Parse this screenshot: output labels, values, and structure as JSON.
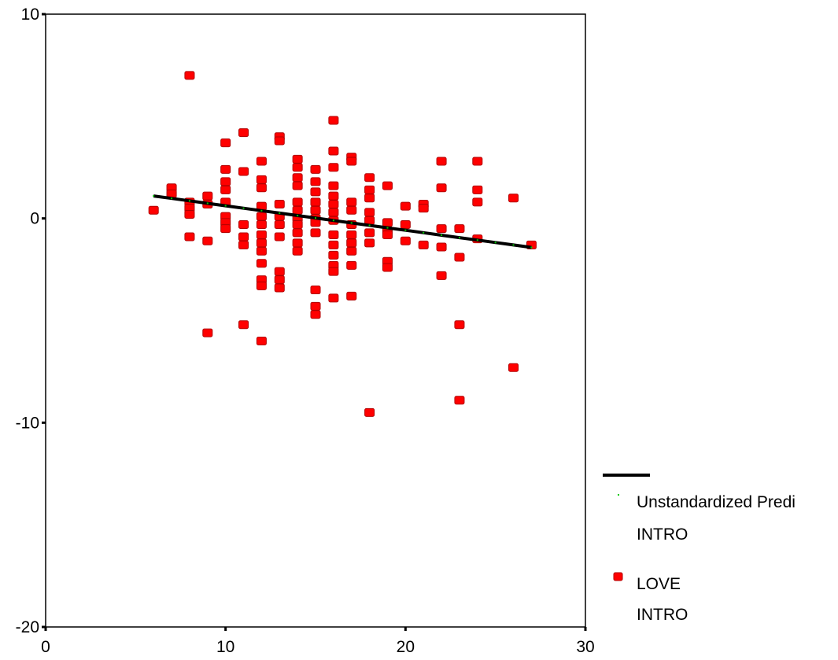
{
  "chart_data": {
    "type": "scatter",
    "title": "",
    "xlabel": "",
    "ylabel": "",
    "xlim": [
      0,
      30
    ],
    "ylim": [
      -20,
      10
    ],
    "x_ticks": [
      0,
      10,
      20,
      30
    ],
    "y_ticks": [
      10,
      0,
      -10,
      -20
    ],
    "grid": false,
    "legend_position": "right",
    "legend": [
      {
        "line1": "Unstandardized Predi",
        "line2": "INTRO",
        "marker": "line"
      },
      {
        "line1": "LOVE",
        "line2": "INTRO",
        "marker": "square"
      }
    ],
    "colors": {
      "observed": "#ff0000",
      "observed_edge": "#b00000",
      "fit_line": "#000000",
      "fit_dots": "#00c800"
    },
    "series": [
      {
        "name": "Unstandardized Predi INTRO",
        "type": "line",
        "x": [
          6,
          7,
          8,
          9,
          10,
          11,
          12,
          13,
          14,
          15,
          16,
          17,
          18,
          19,
          20,
          21,
          22,
          23,
          24,
          25,
          26,
          27
        ],
        "values": [
          1.1,
          0.98,
          0.86,
          0.74,
          0.62,
          0.5,
          0.38,
          0.26,
          0.14,
          0.02,
          -0.1,
          -0.22,
          -0.34,
          -0.46,
          -0.58,
          -0.7,
          -0.82,
          -0.94,
          -1.06,
          -1.18,
          -1.3,
          -1.42
        ]
      },
      {
        "name": "LOVE INTRO",
        "type": "scatter",
        "points": [
          [
            6,
            0.4
          ],
          [
            7,
            1.5
          ],
          [
            7,
            1.2
          ],
          [
            8,
            7.0
          ],
          [
            8,
            0.8
          ],
          [
            8,
            0.5
          ],
          [
            8,
            0.2
          ],
          [
            8,
            -0.9
          ],
          [
            9,
            1.1
          ],
          [
            9,
            0.7
          ],
          [
            9,
            -1.1
          ],
          [
            9,
            -5.6
          ],
          [
            10,
            3.7
          ],
          [
            10,
            2.4
          ],
          [
            10,
            1.8
          ],
          [
            10,
            1.4
          ],
          [
            10,
            0.8
          ],
          [
            10,
            0.1
          ],
          [
            10,
            -0.2
          ],
          [
            10,
            -0.5
          ],
          [
            11,
            4.2
          ],
          [
            11,
            2.3
          ],
          [
            11,
            -0.3
          ],
          [
            11,
            -0.9
          ],
          [
            11,
            -1.3
          ],
          [
            11,
            -5.2
          ],
          [
            12,
            2.8
          ],
          [
            12,
            1.9
          ],
          [
            12,
            1.5
          ],
          [
            12,
            0.6
          ],
          [
            12,
            0.1
          ],
          [
            12,
            -0.3
          ],
          [
            12,
            -0.8
          ],
          [
            12,
            -1.2
          ],
          [
            12,
            -1.6
          ],
          [
            12,
            -2.2
          ],
          [
            12,
            -3.0
          ],
          [
            12,
            -3.3
          ],
          [
            12,
            -6.0
          ],
          [
            13,
            4.0
          ],
          [
            13,
            3.8
          ],
          [
            13,
            0.7
          ],
          [
            13,
            0.1
          ],
          [
            13,
            -0.3
          ],
          [
            13,
            -0.9
          ],
          [
            13,
            -2.6
          ],
          [
            13,
            -3.0
          ],
          [
            13,
            -3.4
          ],
          [
            14,
            2.9
          ],
          [
            14,
            2.5
          ],
          [
            14,
            2.0
          ],
          [
            14,
            1.6
          ],
          [
            14,
            0.8
          ],
          [
            14,
            0.4
          ],
          [
            14,
            0.0
          ],
          [
            14,
            -0.3
          ],
          [
            14,
            -0.7
          ],
          [
            14,
            -1.2
          ],
          [
            14,
            -1.6
          ],
          [
            15,
            2.4
          ],
          [
            15,
            1.8
          ],
          [
            15,
            1.3
          ],
          [
            15,
            0.8
          ],
          [
            15,
            0.4
          ],
          [
            15,
            0.0
          ],
          [
            15,
            -0.2
          ],
          [
            15,
            -0.7
          ],
          [
            15,
            -3.5
          ],
          [
            15,
            -4.3
          ],
          [
            15,
            -4.7
          ],
          [
            16,
            4.8
          ],
          [
            16,
            3.3
          ],
          [
            16,
            2.5
          ],
          [
            16,
            1.6
          ],
          [
            16,
            1.1
          ],
          [
            16,
            0.7
          ],
          [
            16,
            0.3
          ],
          [
            16,
            -0.1
          ],
          [
            16,
            -0.8
          ],
          [
            16,
            -1.3
          ],
          [
            16,
            -1.8
          ],
          [
            16,
            -2.3
          ],
          [
            16,
            -2.6
          ],
          [
            16,
            -3.9
          ],
          [
            17,
            3.0
          ],
          [
            17,
            2.8
          ],
          [
            17,
            0.8
          ],
          [
            17,
            0.4
          ],
          [
            17,
            -0.3
          ],
          [
            17,
            -0.8
          ],
          [
            17,
            -1.2
          ],
          [
            17,
            -1.6
          ],
          [
            17,
            -2.3
          ],
          [
            17,
            -3.8
          ],
          [
            18,
            2.0
          ],
          [
            18,
            1.4
          ],
          [
            18,
            1.0
          ],
          [
            18,
            0.3
          ],
          [
            18,
            -0.1
          ],
          [
            18,
            -0.7
          ],
          [
            18,
            -1.2
          ],
          [
            18,
            -9.5
          ],
          [
            19,
            1.6
          ],
          [
            19,
            -0.2
          ],
          [
            19,
            -0.6
          ],
          [
            19,
            -0.8
          ],
          [
            19,
            -2.1
          ],
          [
            19,
            -2.4
          ],
          [
            20,
            0.6
          ],
          [
            20,
            -0.3
          ],
          [
            20,
            -1.1
          ],
          [
            21,
            0.7
          ],
          [
            21,
            0.5
          ],
          [
            21,
            -1.3
          ],
          [
            22,
            2.8
          ],
          [
            22,
            1.5
          ],
          [
            22,
            -0.5
          ],
          [
            22,
            -1.4
          ],
          [
            22,
            -2.8
          ],
          [
            23,
            -0.5
          ],
          [
            23,
            -1.9
          ],
          [
            23,
            -5.2
          ],
          [
            23,
            -8.9
          ],
          [
            24,
            2.8
          ],
          [
            24,
            1.4
          ],
          [
            24,
            0.8
          ],
          [
            24,
            -1.0
          ],
          [
            26,
            1.0
          ],
          [
            26,
            -7.3
          ],
          [
            27,
            -1.3
          ]
        ]
      }
    ]
  }
}
